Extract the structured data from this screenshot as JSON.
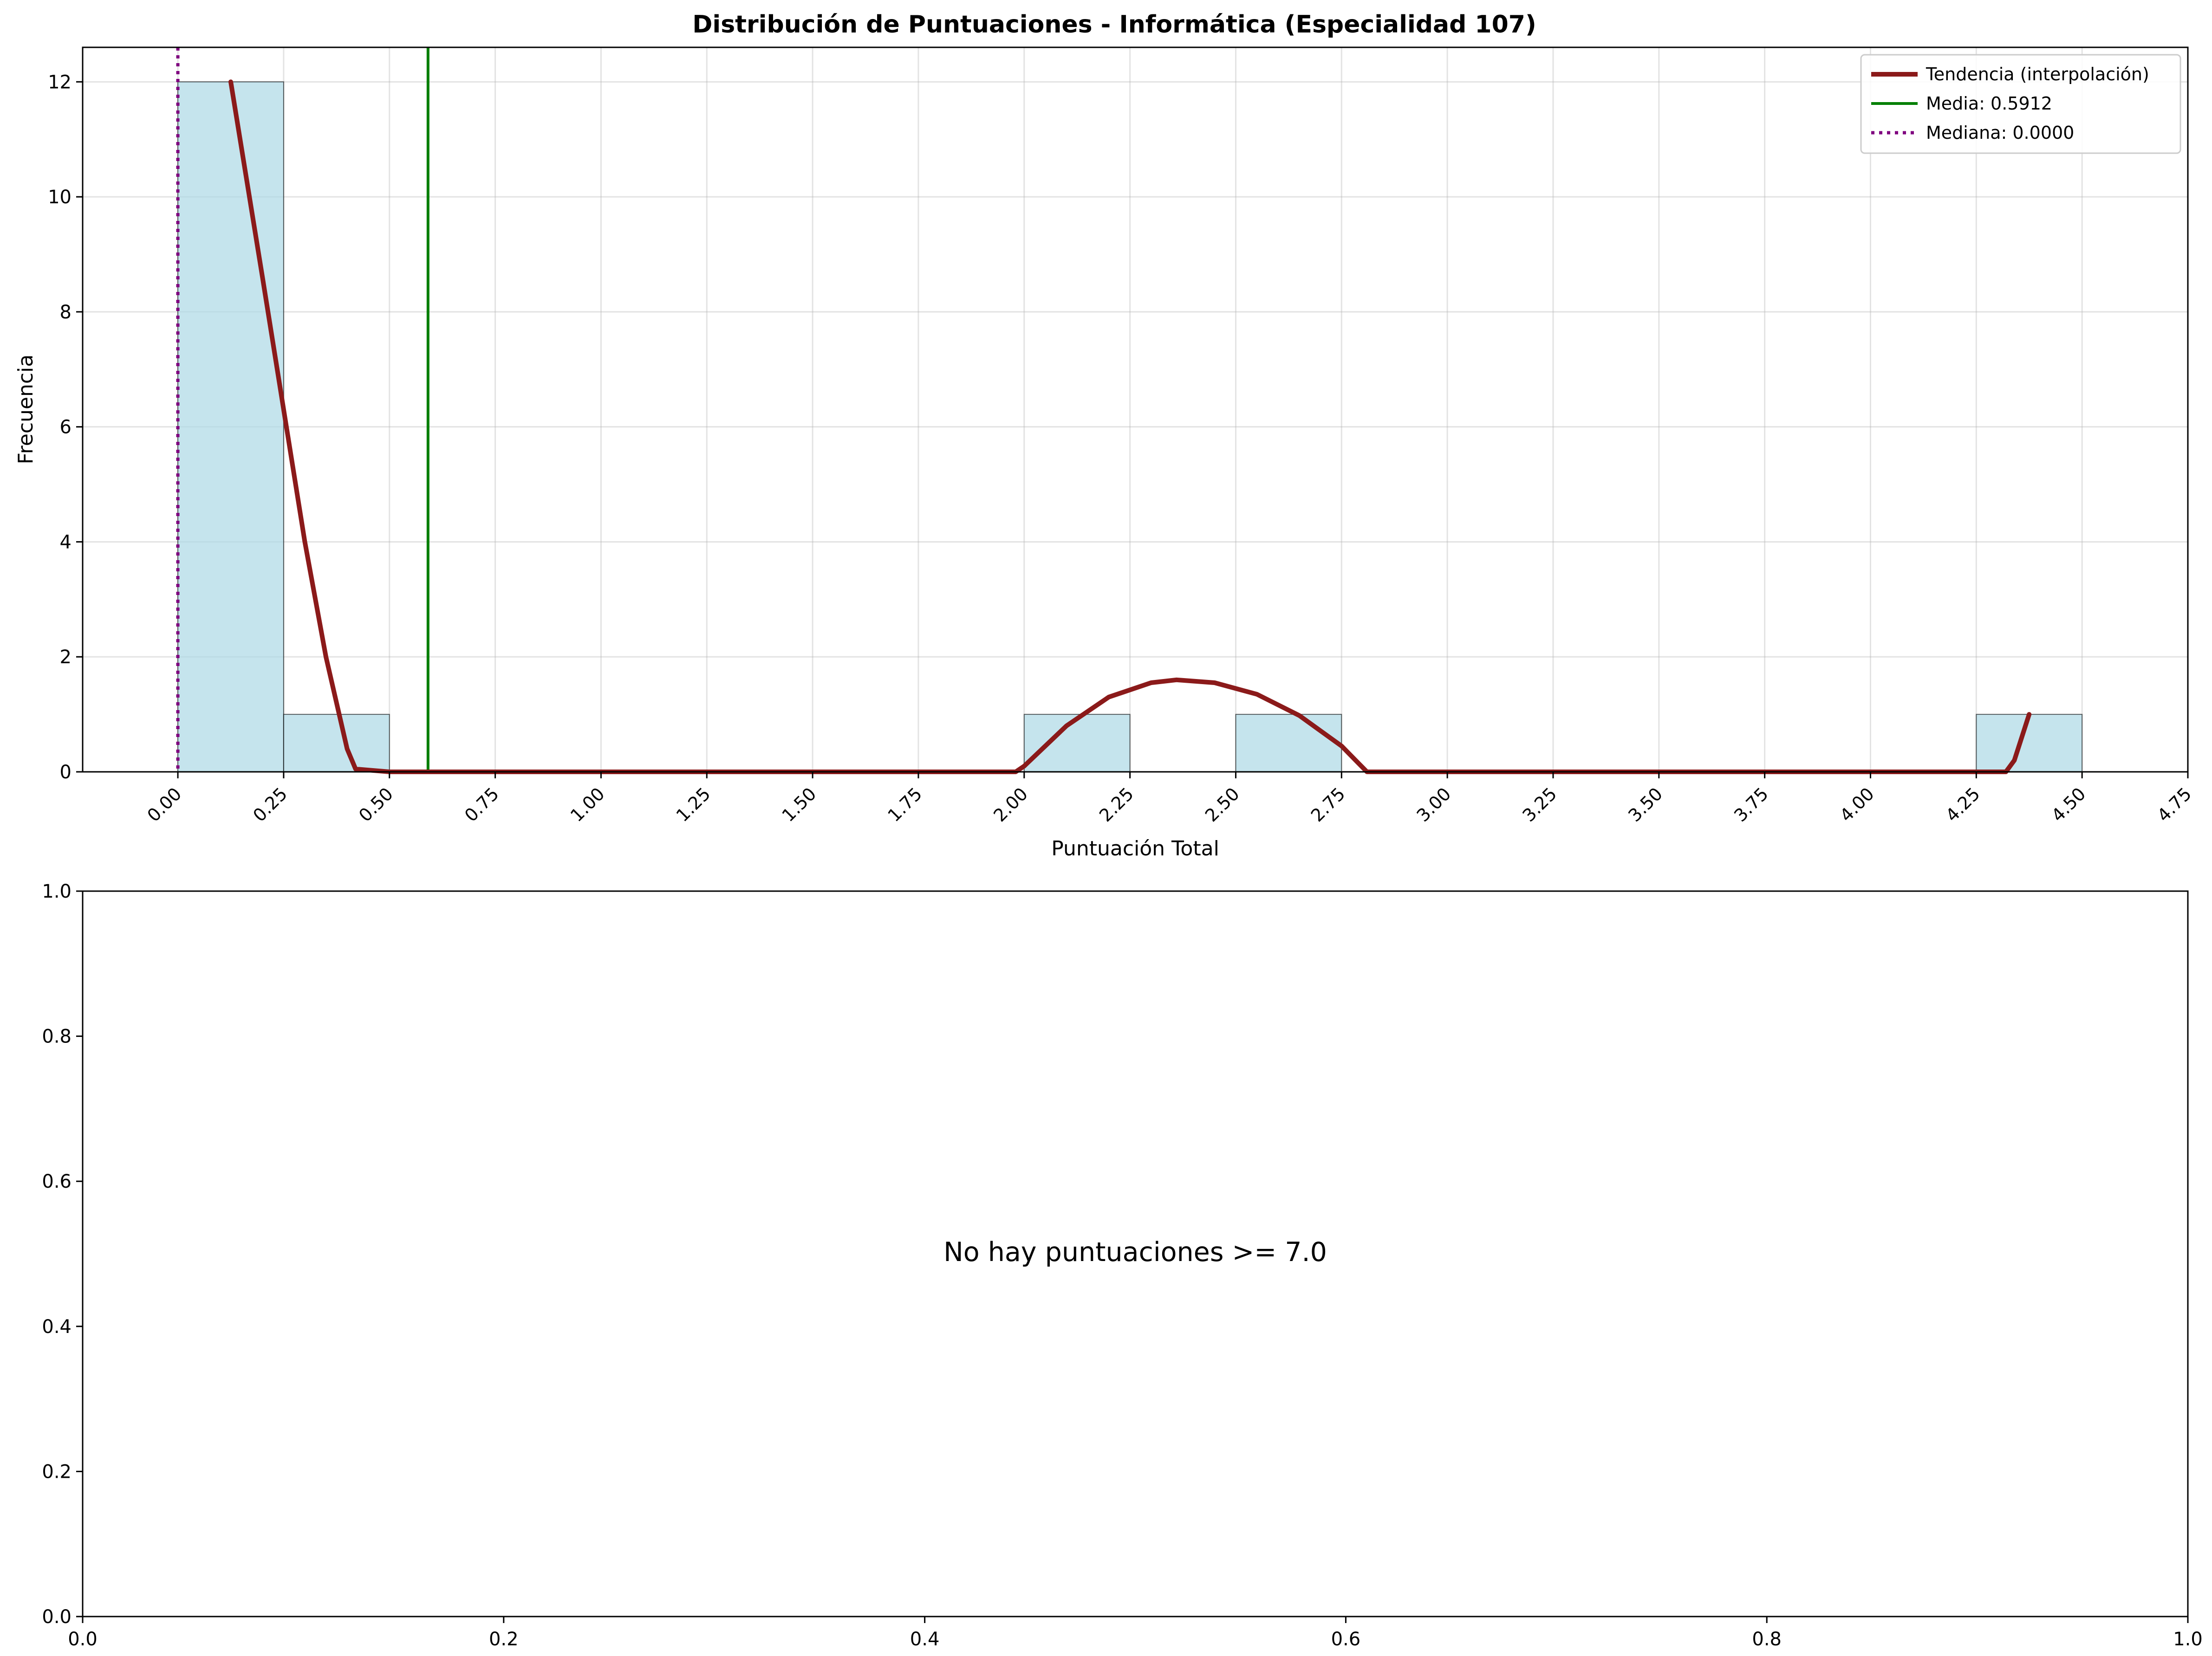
{
  "chart_data": [
    {
      "type": "bar",
      "title": "Distribución de Puntuaciones - Informática (Especialidad 107)",
      "xlabel": "Puntuación Total",
      "ylabel": "Frecuencia",
      "xlim": [
        -0.225,
        4.75
      ],
      "ylim": [
        0,
        12.6
      ],
      "xticks": [
        "0.00",
        "0.25",
        "0.50",
        "0.75",
        "1.00",
        "1.25",
        "1.50",
        "1.75",
        "2.00",
        "2.25",
        "2.50",
        "2.75",
        "3.00",
        "3.25",
        "3.50",
        "3.75",
        "4.00",
        "4.25",
        "4.50",
        "4.75"
      ],
      "yticks": [
        "0",
        "2",
        "4",
        "6",
        "8",
        "10",
        "12"
      ],
      "grid": true,
      "legend_position": "top-right",
      "bins": [
        {
          "start": 0.0,
          "end": 0.25,
          "count": 12
        },
        {
          "start": 0.25,
          "end": 0.5,
          "count": 1
        },
        {
          "start": 2.0,
          "end": 2.25,
          "count": 1
        },
        {
          "start": 2.5,
          "end": 2.75,
          "count": 1
        },
        {
          "start": 4.25,
          "end": 4.5,
          "count": 1
        }
      ],
      "series": [
        {
          "name": "Tendencia (interpolación)",
          "color": "#8b1a1a",
          "x": [
            0.125,
            0.2,
            0.3,
            0.35,
            0.4,
            0.42,
            0.5,
            1.0,
            1.5,
            1.98,
            2.0,
            2.1,
            2.2,
            2.3,
            2.36,
            2.45,
            2.55,
            2.65,
            2.75,
            2.81,
            3.0,
            3.5,
            4.0,
            4.32,
            4.34,
            4.375
          ],
          "y": [
            12,
            8.6,
            4.0,
            2.0,
            0.4,
            0.05,
            0,
            0,
            0,
            0,
            0.1,
            0.8,
            1.3,
            1.55,
            1.6,
            1.55,
            1.35,
            0.98,
            0.45,
            0,
            0,
            0,
            0,
            0,
            0.2,
            1.0
          ]
        }
      ],
      "reference_lines": [
        {
          "name": "Media: 0.5912",
          "value": 0.5912,
          "color": "#007f00",
          "style": "solid"
        },
        {
          "name": "Mediana: 0.0000",
          "value": 0.0,
          "color": "#7f007f",
          "style": "dotted"
        }
      ],
      "colors": {
        "bar_fill": "#add8e6",
        "bar_edge": "#000000"
      }
    },
    {
      "type": "text",
      "annotation": "No hay puntuaciones >= 7.0",
      "xlim": [
        0,
        1
      ],
      "ylim": [
        0,
        1
      ],
      "xticks": [
        "0.0",
        "0.2",
        "0.4",
        "0.6",
        "0.8",
        "1.0"
      ],
      "yticks": [
        "0.0",
        "0.2",
        "0.4",
        "0.6",
        "0.8",
        "1.0"
      ]
    }
  ]
}
